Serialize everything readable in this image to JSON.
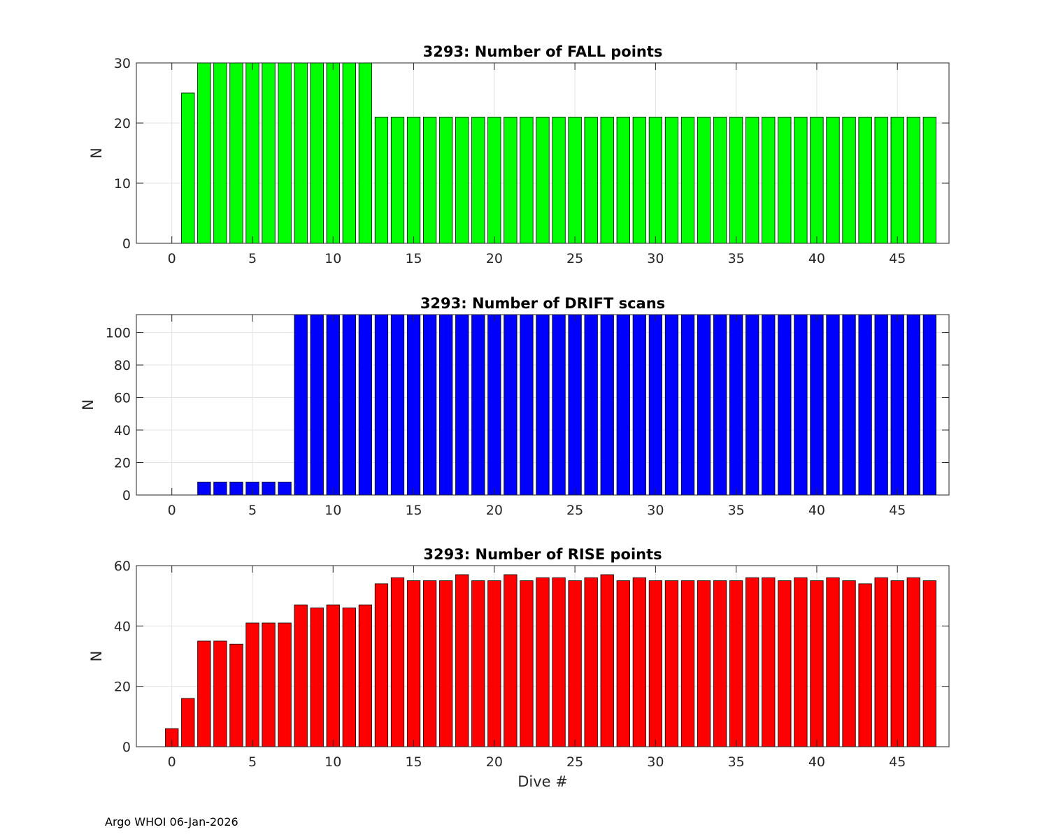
{
  "chart_data": [
    {
      "type": "bar",
      "title": "3293: Number of FALL points",
      "xlabel": "",
      "ylabel": "N",
      "color": "#00ff00",
      "xlim": [
        -2.2,
        48.2
      ],
      "ylim": [
        0,
        30
      ],
      "xticks": [
        0,
        5,
        10,
        15,
        20,
        25,
        30,
        35,
        40,
        45
      ],
      "yticks": [
        0,
        10,
        20,
        30
      ],
      "grid": true,
      "x": [
        0,
        1,
        2,
        3,
        4,
        5,
        6,
        7,
        8,
        9,
        10,
        11,
        12,
        13,
        14,
        15,
        16,
        17,
        18,
        19,
        20,
        21,
        22,
        23,
        24,
        25,
        26,
        27,
        28,
        29,
        30,
        31,
        32,
        33,
        34,
        35,
        36,
        37,
        38,
        39,
        40,
        41,
        42,
        43,
        44,
        45,
        46,
        47
      ],
      "values": [
        0,
        25,
        30,
        30,
        30,
        30,
        30,
        30,
        30,
        30,
        30,
        30,
        30,
        21,
        21,
        21,
        21,
        21,
        21,
        21,
        21,
        21,
        21,
        21,
        21,
        21,
        21,
        21,
        21,
        21,
        21,
        21,
        21,
        21,
        21,
        21,
        21,
        21,
        21,
        21,
        21,
        21,
        21,
        21,
        21,
        21,
        21,
        21
      ]
    },
    {
      "type": "bar",
      "title": "3293: Number of DRIFT scans",
      "xlabel": "",
      "ylabel": "N",
      "color": "#0000ff",
      "xlim": [
        -2.2,
        48.2
      ],
      "ylim": [
        0,
        111
      ],
      "xticks": [
        0,
        5,
        10,
        15,
        20,
        25,
        30,
        35,
        40,
        45
      ],
      "yticks": [
        0,
        20,
        40,
        60,
        80,
        100
      ],
      "grid": true,
      "x": [
        -1,
        0,
        1,
        2,
        3,
        4,
        5,
        6,
        7,
        8,
        9,
        10,
        11,
        12,
        13,
        14,
        15,
        16,
        17,
        18,
        19,
        20,
        21,
        22,
        23,
        24,
        25,
        26,
        27,
        28,
        29,
        30,
        31,
        32,
        33,
        34,
        35,
        36,
        37,
        38,
        39,
        40,
        41,
        42,
        43,
        44,
        45,
        46,
        47
      ],
      "values": [
        0,
        0,
        0,
        8,
        8,
        8,
        8,
        8,
        8,
        111,
        111,
        111,
        111,
        111,
        111,
        111,
        111,
        111,
        111,
        111,
        111,
        111,
        111,
        111,
        111,
        111,
        111,
        111,
        111,
        111,
        111,
        111,
        111,
        111,
        111,
        111,
        111,
        111,
        111,
        111,
        111,
        111,
        111,
        111,
        111,
        111,
        111,
        111,
        111
      ]
    },
    {
      "type": "bar",
      "title": "3293: Number of RISE points",
      "xlabel": "Dive #",
      "ylabel": "N",
      "color": "#ff0000",
      "xlim": [
        -2.2,
        48.2
      ],
      "ylim": [
        0,
        60
      ],
      "xticks": [
        0,
        5,
        10,
        15,
        20,
        25,
        30,
        35,
        40,
        45
      ],
      "yticks": [
        0,
        20,
        40,
        60
      ],
      "grid": true,
      "x": [
        0,
        1,
        2,
        3,
        4,
        5,
        6,
        7,
        8,
        9,
        10,
        11,
        12,
        13,
        14,
        15,
        16,
        17,
        18,
        19,
        20,
        21,
        22,
        23,
        24,
        25,
        26,
        27,
        28,
        29,
        30,
        31,
        32,
        33,
        34,
        35,
        36,
        37,
        38,
        39,
        40,
        41,
        42,
        43,
        44,
        45,
        46,
        47
      ],
      "values": [
        6,
        16,
        35,
        35,
        34,
        41,
        41,
        41,
        47,
        46,
        47,
        46,
        47,
        54,
        56,
        55,
        55,
        55,
        57,
        55,
        55,
        57,
        55,
        56,
        56,
        55,
        56,
        57,
        55,
        56,
        55,
        55,
        55,
        55,
        55,
        55,
        56,
        56,
        55,
        56,
        55,
        56,
        55,
        54,
        56,
        55,
        56,
        55
      ]
    }
  ],
  "footer": "Argo WHOI 06-Jan-2026"
}
